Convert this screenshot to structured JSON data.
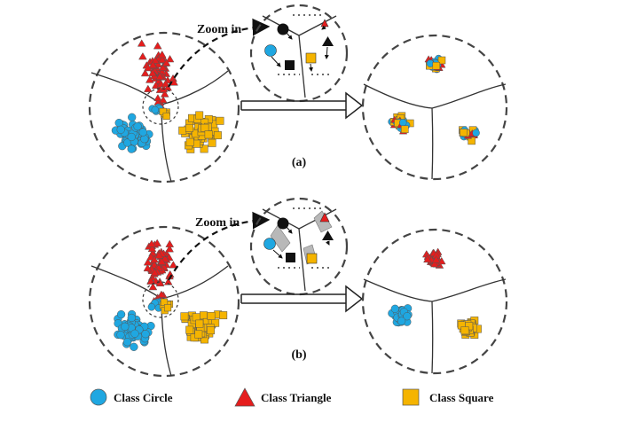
{
  "colors": {
    "circle": "#1fa7e1",
    "triangle": "#e51d1d",
    "square": "#f5b400",
    "gray": "#b8b8b8",
    "outline": "#333333",
    "dash": "#444444"
  },
  "panel_a": {
    "zoom_label": "Zoom in",
    "caption": "(a)"
  },
  "panel_b": {
    "zoom_label": "Zoom in",
    "caption": "(b)"
  },
  "legend": {
    "items": [
      {
        "label": "Class Circle",
        "shape": "circle-icon"
      },
      {
        "label": "Class Triangle",
        "shape": "triangle-icon"
      },
      {
        "label": "Class Square",
        "shape": "square-icon"
      }
    ]
  }
}
